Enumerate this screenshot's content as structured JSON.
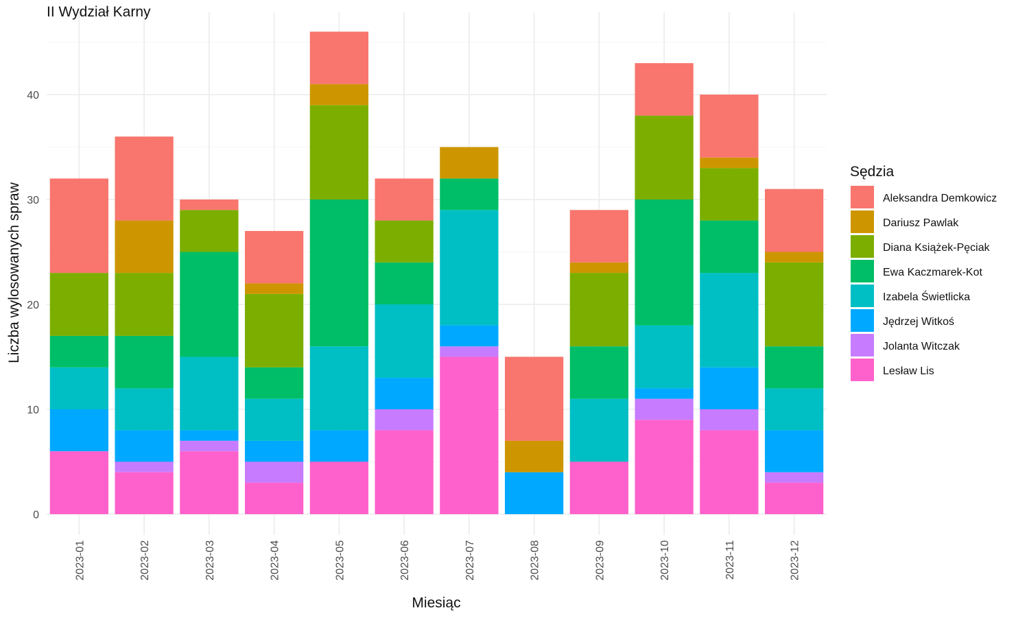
{
  "chart_data": {
    "type": "bar",
    "stacked": true,
    "title": "II Wydział Karny",
    "xlabel": "Miesiąc",
    "ylabel": "Liczba wylosowanych spraw",
    "ylim": [
      0,
      47
    ],
    "yticks": [
      0,
      10,
      20,
      30,
      40
    ],
    "grid": true,
    "legend_title": "Sędzia",
    "legend_position": "right",
    "categories": [
      "2023-01",
      "2023-02",
      "2023-03",
      "2023-04",
      "2023-05",
      "2023-06",
      "2023-07",
      "2023-08",
      "2023-09",
      "2023-10",
      "2023-11",
      "2023-12"
    ],
    "series": [
      {
        "name": "Aleksandra Demkowicz",
        "color": "#F8766D",
        "values": [
          9,
          8,
          1,
          5,
          5,
          4,
          0,
          8,
          5,
          5,
          6,
          6
        ]
      },
      {
        "name": "Dariusz Pawlak",
        "color": "#CD9600",
        "values": [
          0,
          5,
          0,
          1,
          2,
          0,
          3,
          3,
          1,
          0,
          1,
          1
        ]
      },
      {
        "name": "Diana Książek-Pęciak",
        "color": "#7CAE00",
        "values": [
          6,
          6,
          4,
          7,
          9,
          4,
          0,
          0,
          7,
          8,
          5,
          8
        ]
      },
      {
        "name": "Ewa Kaczmarek-Kot",
        "color": "#00BE67",
        "values": [
          3,
          5,
          10,
          3,
          14,
          4,
          3,
          0,
          5,
          12,
          5,
          4
        ]
      },
      {
        "name": "Izabela Świetlicka",
        "color": "#00BFC4",
        "values": [
          4,
          4,
          7,
          4,
          8,
          7,
          11,
          0,
          6,
          6,
          9,
          4
        ]
      },
      {
        "name": "Jędrzej Witkoś",
        "color": "#00A9FF",
        "values": [
          4,
          3,
          1,
          2,
          3,
          3,
          2,
          4,
          0,
          1,
          4,
          4
        ]
      },
      {
        "name": "Jolanta Witczak",
        "color": "#C77CFF",
        "values": [
          0,
          1,
          1,
          2,
          0,
          2,
          1,
          0,
          0,
          2,
          2,
          1
        ]
      },
      {
        "name": "Lesław Lis",
        "color": "#FF61CC",
        "values": [
          6,
          4,
          6,
          3,
          5,
          8,
          15,
          0,
          5,
          9,
          8,
          3
        ]
      }
    ]
  }
}
